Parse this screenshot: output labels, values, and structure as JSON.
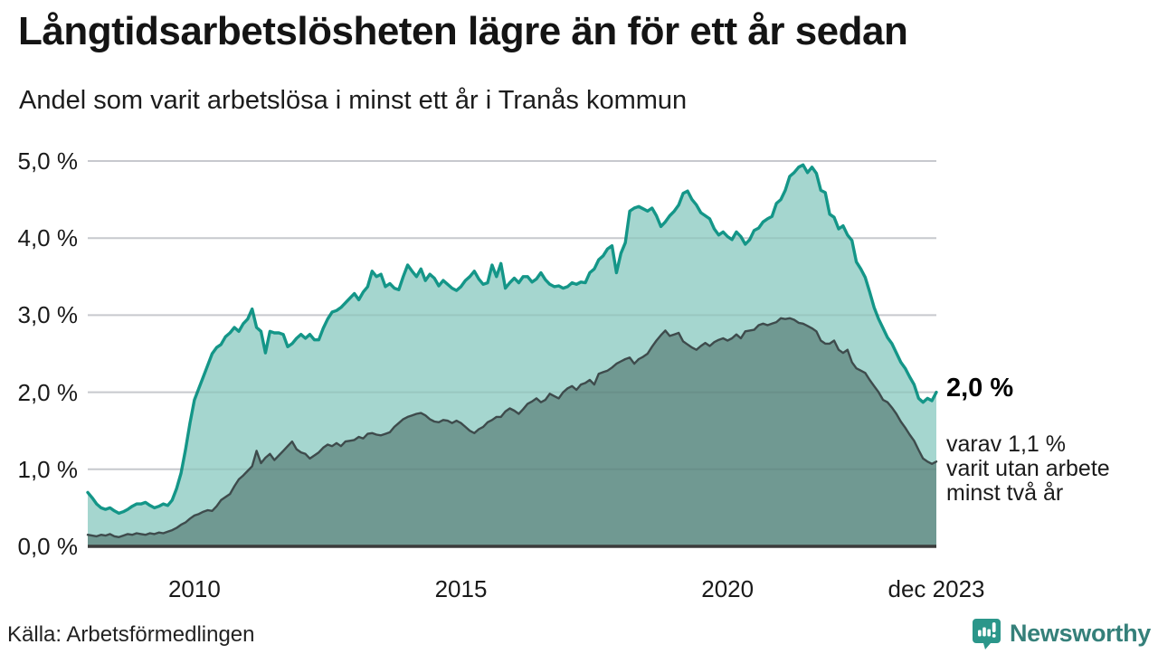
{
  "header": {
    "title": "Långtidsarbetslösheten lägre än för ett år sedan",
    "subtitle": "Andel som varit arbetslösa i minst ett år i Tranås kommun"
  },
  "annotation": {
    "value_label": "2,0 %",
    "sublabel_lines": [
      "varav 1,1 %",
      "varit utan arbete",
      "minst två år"
    ]
  },
  "footer": {
    "source": "Källa: Arbetsförmedlingen",
    "brand": "Newsworthy"
  },
  "colors": {
    "line_1yr": "#149688",
    "fill_1yr": "#a5d6cf",
    "line_2yr": "#3e4b4c",
    "fill_2yr": "#709992",
    "gridline": "#d9d9de",
    "gridline_overlay": "rgba(45,65,65,0.10)",
    "axis_baseline": "#3b3b3b",
    "brand_teal": "#2b968a"
  },
  "chart_data": {
    "type": "area",
    "title": "Andel som varit arbetslösa i minst ett år i Tranås kommun",
    "unit": "%",
    "frequency": "monthly",
    "x_start": "2008-01",
    "x_end": "2023-12",
    "ylim": [
      0,
      5
    ],
    "grid": true,
    "y_ticks": [
      {
        "value": 0,
        "label": "0,0 %"
      },
      {
        "value": 1,
        "label": "1,0 %"
      },
      {
        "value": 2,
        "label": "2,0 %"
      },
      {
        "value": 3,
        "label": "3,0 %"
      },
      {
        "value": 4,
        "label": "4,0 %"
      },
      {
        "value": 5,
        "label": "5,0 %"
      }
    ],
    "x_ticks": [
      {
        "month_index": 24,
        "label": "2010"
      },
      {
        "month_index": 84,
        "label": "2015"
      },
      {
        "month_index": 144,
        "label": "2020"
      },
      {
        "month_index": 191,
        "label": "dec 2023"
      }
    ],
    "series": [
      {
        "name": "Arbetslösa minst ett år",
        "end_value": 2.0,
        "values": [
          0.7,
          0.63,
          0.55,
          0.5,
          0.48,
          0.5,
          0.46,
          0.43,
          0.45,
          0.48,
          0.52,
          0.55,
          0.55,
          0.57,
          0.53,
          0.5,
          0.52,
          0.55,
          0.53,
          0.6,
          0.75,
          0.95,
          1.25,
          1.6,
          1.9,
          2.05,
          2.2,
          2.35,
          2.5,
          2.58,
          2.62,
          2.72,
          2.77,
          2.84,
          2.79,
          2.89,
          2.95,
          3.08,
          2.84,
          2.79,
          2.51,
          2.79,
          2.77,
          2.77,
          2.75,
          2.59,
          2.63,
          2.7,
          2.75,
          2.7,
          2.75,
          2.68,
          2.68,
          2.83,
          2.95,
          3.04,
          3.06,
          3.1,
          3.16,
          3.22,
          3.28,
          3.2,
          3.3,
          3.37,
          3.57,
          3.5,
          3.53,
          3.37,
          3.41,
          3.35,
          3.33,
          3.5,
          3.65,
          3.57,
          3.5,
          3.6,
          3.45,
          3.53,
          3.48,
          3.38,
          3.45,
          3.4,
          3.35,
          3.32,
          3.37,
          3.45,
          3.5,
          3.57,
          3.47,
          3.4,
          3.42,
          3.65,
          3.5,
          3.67,
          3.35,
          3.42,
          3.48,
          3.42,
          3.5,
          3.5,
          3.43,
          3.47,
          3.55,
          3.46,
          3.4,
          3.37,
          3.38,
          3.35,
          3.37,
          3.42,
          3.4,
          3.43,
          3.42,
          3.55,
          3.6,
          3.72,
          3.77,
          3.86,
          3.9,
          3.55,
          3.8,
          3.94,
          4.35,
          4.39,
          4.41,
          4.38,
          4.35,
          4.39,
          4.29,
          4.15,
          4.21,
          4.29,
          4.35,
          4.43,
          4.58,
          4.61,
          4.5,
          4.43,
          4.33,
          4.29,
          4.25,
          4.12,
          4.04,
          4.08,
          4.02,
          3.98,
          4.08,
          4.02,
          3.92,
          3.98,
          4.1,
          4.13,
          4.21,
          4.25,
          4.28,
          4.45,
          4.5,
          4.62,
          4.8,
          4.85,
          4.92,
          4.95,
          4.85,
          4.92,
          4.84,
          4.62,
          4.59,
          4.31,
          4.27,
          4.12,
          4.16,
          4.04,
          3.97,
          3.69,
          3.6,
          3.49,
          3.3,
          3.1,
          2.95,
          2.83,
          2.71,
          2.63,
          2.51,
          2.39,
          2.31,
          2.2,
          2.1,
          1.92,
          1.87,
          1.92,
          1.89,
          2.0
        ]
      },
      {
        "name": "Varav arbetslösa minst två år",
        "end_value": 1.1,
        "values": [
          0.15,
          0.14,
          0.13,
          0.15,
          0.14,
          0.16,
          0.13,
          0.12,
          0.14,
          0.16,
          0.15,
          0.17,
          0.16,
          0.15,
          0.17,
          0.16,
          0.18,
          0.17,
          0.19,
          0.21,
          0.24,
          0.28,
          0.31,
          0.36,
          0.4,
          0.42,
          0.45,
          0.47,
          0.46,
          0.52,
          0.6,
          0.64,
          0.68,
          0.78,
          0.87,
          0.92,
          0.98,
          1.04,
          1.24,
          1.08,
          1.15,
          1.2,
          1.12,
          1.18,
          1.24,
          1.3,
          1.36,
          1.26,
          1.22,
          1.2,
          1.14,
          1.18,
          1.22,
          1.28,
          1.32,
          1.3,
          1.34,
          1.3,
          1.36,
          1.37,
          1.38,
          1.42,
          1.4,
          1.46,
          1.47,
          1.45,
          1.44,
          1.46,
          1.48,
          1.55,
          1.6,
          1.65,
          1.68,
          1.7,
          1.72,
          1.73,
          1.7,
          1.65,
          1.62,
          1.61,
          1.64,
          1.63,
          1.6,
          1.63,
          1.6,
          1.55,
          1.5,
          1.47,
          1.52,
          1.55,
          1.61,
          1.64,
          1.68,
          1.68,
          1.75,
          1.79,
          1.76,
          1.72,
          1.78,
          1.85,
          1.88,
          1.92,
          1.87,
          1.9,
          1.98,
          1.95,
          1.92,
          2.0,
          2.05,
          2.08,
          2.03,
          2.1,
          2.12,
          2.16,
          2.1,
          2.24,
          2.26,
          2.28,
          2.32,
          2.37,
          2.4,
          2.43,
          2.45,
          2.37,
          2.43,
          2.46,
          2.5,
          2.59,
          2.67,
          2.74,
          2.8,
          2.73,
          2.75,
          2.77,
          2.66,
          2.62,
          2.58,
          2.55,
          2.6,
          2.64,
          2.6,
          2.65,
          2.68,
          2.7,
          2.67,
          2.7,
          2.75,
          2.7,
          2.79,
          2.8,
          2.81,
          2.87,
          2.89,
          2.87,
          2.89,
          2.91,
          2.96,
          2.95,
          2.96,
          2.94,
          2.9,
          2.89,
          2.86,
          2.83,
          2.79,
          2.67,
          2.63,
          2.63,
          2.67,
          2.55,
          2.51,
          2.55,
          2.39,
          2.31,
          2.28,
          2.25,
          2.16,
          2.08,
          2.0,
          1.9,
          1.87,
          1.8,
          1.72,
          1.62,
          1.54,
          1.45,
          1.37,
          1.25,
          1.14,
          1.1,
          1.07,
          1.1
        ]
      }
    ]
  }
}
